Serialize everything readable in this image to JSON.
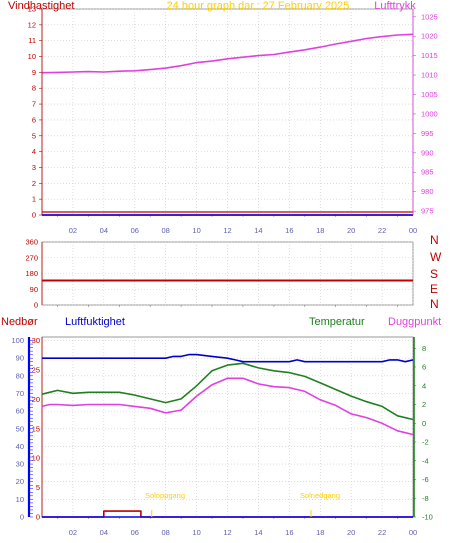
{
  "colors": {
    "wind": "#c00000",
    "pressure": "#e040e0",
    "title": "#ffd000",
    "humidity": "#0000cc",
    "temperature": "#208020",
    "dewpoint": "#e040e0",
    "rain": "#c00000",
    "sun": "#ffd000",
    "axis_blue": "#0000ff",
    "tick_blue": "#6060b0"
  },
  "header": {
    "left": "Vindhastighet",
    "center": "24 hour graph dar.: 27 Februarv 2025",
    "right": "Lufttrykk"
  },
  "panel3_header": {
    "rain": "Nedbør",
    "humidity": "Luftfuktighet",
    "temperature": "Temperatur",
    "dewpoint": "Duggpunkt"
  },
  "compass": [
    "N",
    "W",
    "S",
    "E",
    "N"
  ],
  "annotations": {
    "sunrise": "Soloppgang",
    "sunset": "Solnedgang"
  },
  "chart_data": [
    {
      "type": "line",
      "x_ticks": [
        "02",
        "04",
        "06",
        "08",
        "10",
        "12",
        "14",
        "16",
        "18",
        "20",
        "22",
        "00"
      ],
      "y_left_ticks": [
        0,
        1,
        2,
        3,
        4,
        5,
        6,
        7,
        8,
        9,
        10,
        11,
        12,
        13
      ],
      "y_right_ticks": [
        975,
        980,
        985,
        990,
        995,
        1000,
        1005,
        1010,
        1015,
        1020,
        1025
      ],
      "ylim_left": [
        0,
        13
      ],
      "ylim_right": [
        974,
        1027
      ],
      "series": [
        {
          "name": "Lufttrykk",
          "axis": "right",
          "x": [
            0,
            1,
            2,
            3,
            4,
            5,
            6,
            7,
            8,
            9,
            10,
            11,
            12,
            13,
            14,
            15,
            16,
            17,
            18,
            19,
            20,
            21,
            22,
            23,
            24
          ],
          "values": [
            1010.6,
            1010.7,
            1010.8,
            1010.9,
            1010.8,
            1011.0,
            1011.1,
            1011.4,
            1011.8,
            1012.4,
            1013.2,
            1013.6,
            1014.2,
            1014.6,
            1015.0,
            1015.3,
            1015.9,
            1016.5,
            1017.2,
            1018.0,
            1018.7,
            1019.4,
            1019.9,
            1020.3,
            1020.5
          ]
        },
        {
          "name": "Vindhastighet",
          "axis": "left",
          "x": [
            0,
            24
          ],
          "values": [
            0,
            0
          ]
        }
      ]
    },
    {
      "type": "line",
      "x_ticks": [
        "02",
        "04",
        "06",
        "08",
        "10",
        "12",
        "14",
        "16",
        "18",
        "20",
        "22",
        "00"
      ],
      "y_left_ticks": [
        0,
        90,
        180,
        270,
        360
      ],
      "ylim_left": [
        0,
        360
      ],
      "series": [
        {
          "name": "Vindretning",
          "x": [
            0,
            24
          ],
          "values": [
            140,
            140
          ]
        }
      ]
    },
    {
      "type": "line",
      "x_ticks": [
        "02",
        "04",
        "06",
        "08",
        "10",
        "12",
        "14",
        "16",
        "18",
        "20",
        "22",
        "00"
      ],
      "y_humidity_ticks": [
        0,
        10,
        20,
        30,
        40,
        50,
        60,
        70,
        80,
        90,
        100
      ],
      "y_rain_ticks": [
        0,
        5,
        10,
        15,
        20,
        25,
        30
      ],
      "y_right_ticks": [
        -10,
        -8,
        -6,
        -4,
        -2,
        0,
        2,
        4,
        6,
        8
      ],
      "ylim_humidity": [
        0,
        102
      ],
      "ylim_rain": [
        0,
        30.6
      ],
      "ylim_right": [
        -10,
        9.2
      ],
      "series": [
        {
          "name": "Luftfuktighet",
          "axis": "humidity",
          "x": [
            0,
            4,
            8,
            8.5,
            9,
            9.5,
            10,
            11,
            12,
            12.5,
            13,
            14,
            15,
            16,
            16.5,
            17,
            18,
            19,
            20,
            21,
            22,
            22.5,
            23,
            23.5,
            24
          ],
          "values": [
            90,
            90,
            90,
            91,
            91,
            92,
            92,
            91,
            90,
            89,
            88,
            88,
            88,
            88,
            89,
            88,
            88,
            88,
            88,
            88,
            88,
            89,
            89,
            88,
            89
          ]
        },
        {
          "name": "Temperatur",
          "axis": "right",
          "x": [
            0,
            0.5,
            1,
            2,
            3,
            4,
            5,
            6,
            7,
            8,
            9,
            10,
            11,
            12,
            13,
            14,
            15,
            16,
            17,
            18,
            19,
            20,
            21,
            22,
            23,
            24
          ],
          "values": [
            3.1,
            3.3,
            3.5,
            3.2,
            3.3,
            3.3,
            3.3,
            3.0,
            2.6,
            2.2,
            2.6,
            4.0,
            5.6,
            6.2,
            6.4,
            5.9,
            5.6,
            5.4,
            5.0,
            4.3,
            3.6,
            2.9,
            2.3,
            1.8,
            0.8,
            0.4
          ]
        },
        {
          "name": "Duggpunkt",
          "axis": "right",
          "x": [
            0,
            0.5,
            1,
            2,
            3,
            4,
            5,
            6,
            7,
            8,
            9,
            10,
            11,
            12,
            13,
            14,
            15,
            16,
            17,
            18,
            19,
            20,
            21,
            22,
            23,
            24
          ],
          "values": [
            1.8,
            2.0,
            2.0,
            1.9,
            2.0,
            2.0,
            2.0,
            1.8,
            1.6,
            1.1,
            1.4,
            2.9,
            4.1,
            4.8,
            4.8,
            4.2,
            3.9,
            3.8,
            3.4,
            2.5,
            1.9,
            1.0,
            0.6,
            0.0,
            -0.8,
            -1.2
          ]
        },
        {
          "name": "Nedbør",
          "axis": "rain",
          "x": [
            0,
            4,
            4,
            6.4,
            6.4,
            24
          ],
          "values": [
            0,
            0,
            1,
            1,
            0,
            0
          ]
        }
      ]
    }
  ]
}
